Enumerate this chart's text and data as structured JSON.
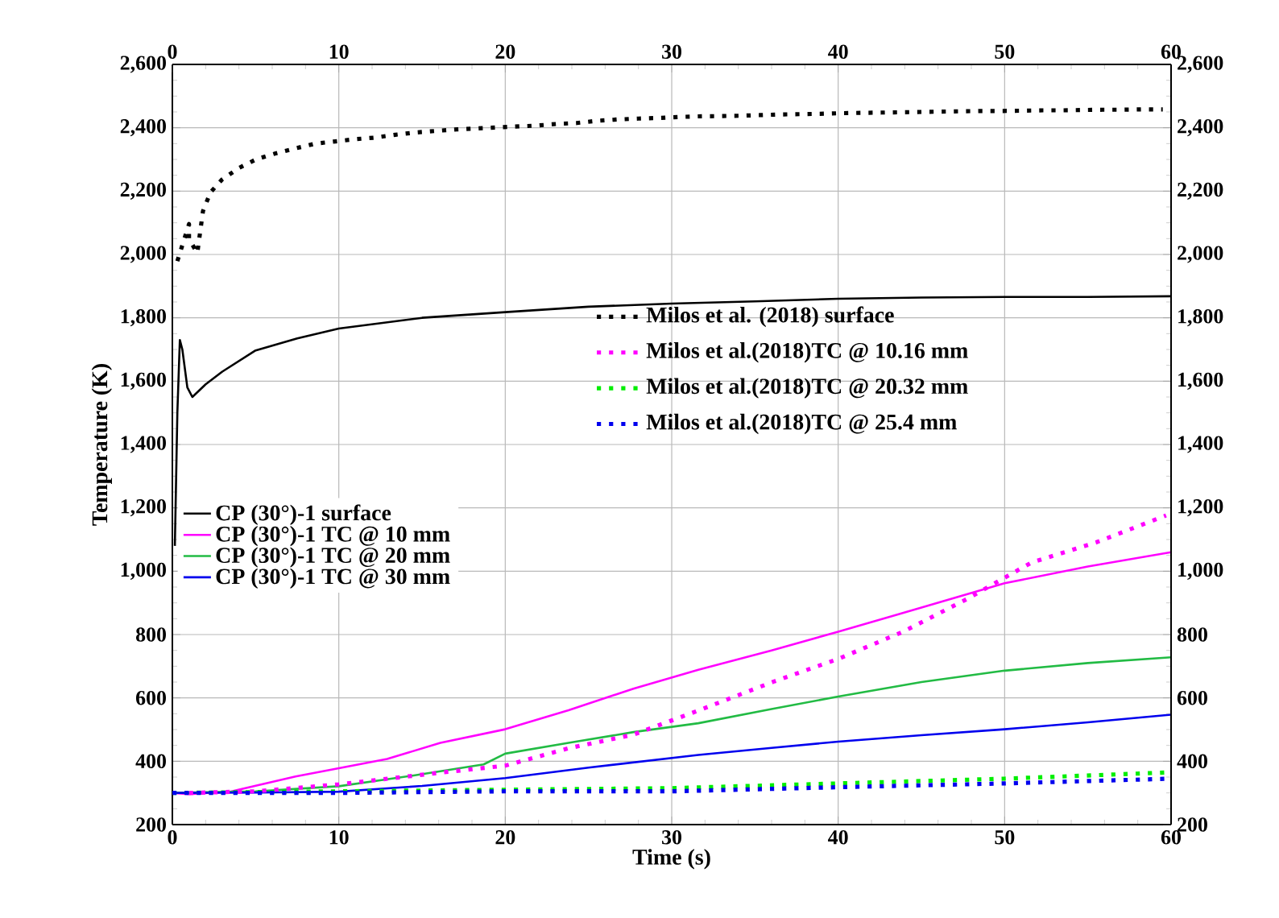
{
  "chart_data": {
    "type": "line",
    "xlabel": "Time (s)",
    "ylabel": "Temperature (K)",
    "xlim": [
      0,
      60
    ],
    "xticks": [
      0,
      10,
      20,
      30,
      40,
      50,
      60
    ],
    "x2lim": [
      0,
      60
    ],
    "x2ticks": [
      0,
      10,
      20,
      30,
      40,
      50,
      60
    ],
    "ylim": [
      200,
      2600
    ],
    "yticks": [
      200,
      400,
      600,
      800,
      {
        "value": 1000,
        "label": "1,000"
      },
      {
        "value": 1200,
        "label": "1,200"
      },
      {
        "value": 1400,
        "label": "1,400"
      },
      {
        "value": 1600,
        "label": "1,600"
      },
      {
        "value": 1800,
        "label": "1,800"
      },
      {
        "value": 2000,
        "label": "2,000"
      },
      {
        "value": 2200,
        "label": "2,200"
      },
      {
        "value": 2400,
        "label": "2,400"
      },
      {
        "value": 2600,
        "label": "2,600"
      }
    ],
    "y2lim": [
      200,
      2600
    ],
    "y2ticks": [
      200,
      400,
      600,
      800,
      {
        "value": 1000,
        "label": "1,000"
      },
      {
        "value": 1200,
        "label": "1,200"
      },
      {
        "value": 1400,
        "label": "1,400"
      },
      {
        "value": 1600,
        "label": "1,600"
      },
      {
        "value": 1800,
        "label": "1,800"
      },
      {
        "value": 2000,
        "label": "2,000"
      },
      {
        "value": 2200,
        "label": "2,200"
      },
      {
        "value": 2400,
        "label": "2,400"
      },
      {
        "value": 2600,
        "label": "2,600"
      }
    ],
    "grid": true,
    "legend": "left",
    "marker": "none",
    "series": [
      {
        "name": "CP (30°)-1 surface",
        "color": "#000000",
        "line_style": "solid",
        "x": [
          0.15,
          0.3,
          0.45,
          0.6,
          0.9,
          1.2,
          2,
          3,
          5,
          7.5,
          10,
          15,
          20,
          25,
          30,
          35,
          40,
          45,
          50,
          55,
          60
        ],
        "values": [
          1080,
          1500,
          1730,
          1700,
          1580,
          1550,
          1590,
          1630,
          1697,
          1735,
          1766,
          1800,
          1818,
          1835,
          1845,
          1852,
          1860,
          1864,
          1866,
          1866,
          1868
        ]
      },
      {
        "name": "CP (30°)-1 TC @ 10 mm",
        "color": "#ff00ff",
        "line_style": "solid",
        "x": [
          0,
          1,
          3.5,
          7.4,
          10,
          12.9,
          16.1,
          20,
          23.8,
          27.7,
          31.6,
          36,
          40,
          45,
          50,
          55,
          60
        ],
        "values": [
          300,
          296,
          304,
          352,
          378,
          407,
          458,
          501,
          561,
          629,
          689,
          750,
          809,
          885,
          962,
          1015,
          1060
        ]
      },
      {
        "name": "CP (30°)-1 TC @ 20 mm",
        "color": "#22bb44",
        "line_style": "solid",
        "x": [
          0,
          5,
          10,
          14.5,
          18.7,
          20,
          23.8,
          27.7,
          31.6,
          36,
          40,
          45,
          50,
          55,
          60
        ],
        "values": [
          300,
          305,
          321,
          355,
          390,
          424,
          458,
          492,
          520,
          565,
          604,
          650,
          686,
          710,
          728
        ]
      },
      {
        "name": "CP (30°)-1 TC @ 30 mm",
        "color": "#0000ee",
        "line_style": "solid",
        "x": [
          0,
          5,
          10,
          15,
          20,
          25,
          31.6,
          36,
          40,
          45,
          50,
          55,
          60
        ],
        "values": [
          300,
          301,
          304,
          322,
          347,
          380,
          420,
          442,
          462,
          482,
          501,
          523,
          547
        ]
      },
      {
        "name": "Milos et al. (2018) surface",
        "color": "#000000",
        "line_style": "dotted",
        "x": [
          0.3,
          1.0,
          1.0,
          1.5,
          1.84,
          2.29,
          2.97,
          4.0,
          5.06,
          6.2,
          7.4,
          8.6,
          9.8,
          11.0,
          12.2,
          13.4,
          14.6,
          15.8,
          17.1,
          18.3,
          19.5,
          20.7,
          21.9,
          23.1,
          24.3,
          25.5,
          26.7,
          28.0,
          29.2,
          30.4,
          31.6,
          32.9,
          34.1,
          35.3,
          36.5,
          37.7,
          38.9,
          40.1,
          41.4,
          42.6,
          43.8,
          45.0,
          46.2,
          47.4,
          48.6,
          49.8,
          51.1,
          52.3,
          53.5,
          54.7,
          55.9,
          57.1,
          58.3,
          59.5
        ],
        "values": [
          1979,
          2096,
          2048,
          2005,
          2137,
          2196,
          2236,
          2273,
          2301,
          2319,
          2335,
          2350,
          2357,
          2364,
          2369,
          2378,
          2385,
          2390,
          2395,
          2398,
          2401,
          2404,
          2407,
          2412,
          2415,
          2422,
          2426,
          2429,
          2431,
          2434,
          2436,
          2437,
          2438,
          2440,
          2442,
          2443,
          2444,
          2446,
          2447,
          2448,
          2449,
          2450,
          2451,
          2452,
          2453,
          2453,
          2454,
          2455,
          2455,
          2456,
          2457,
          2457,
          2458,
          2458
        ]
      },
      {
        "name": "Milos et al.(2018)TC @ 10.16 mm",
        "color": "#ff00ff",
        "line_style": "dotted",
        "x": [
          1,
          5,
          10,
          16.1,
          20,
          23.8,
          27.7,
          31.6,
          36.1,
          40,
          43.9,
          47.7,
          51.6,
          55.5,
          59.7
        ],
        "values": [
          300,
          305,
          327,
          364,
          386,
          441,
          484,
          560,
          651,
          723,
          809,
          911,
          1027,
          1091,
          1176
        ]
      },
      {
        "name": "Milos et al.(2018)TC @ 20.32 mm",
        "color": "#00ee00",
        "line_style": "dotted",
        "x": [
          0,
          10,
          20,
          30,
          40,
          50,
          60
        ],
        "values": [
          300,
          305,
          310,
          315,
          330,
          345,
          365
        ]
      },
      {
        "name": "Milos et al.(2018)TC @ 25.4 mm",
        "color": "#0000ee",
        "line_style": "dotted",
        "x": [
          0,
          10,
          20,
          30,
          40,
          50,
          60
        ],
        "values": [
          300,
          300,
          305,
          305,
          318,
          330,
          345
        ]
      }
    ]
  }
}
